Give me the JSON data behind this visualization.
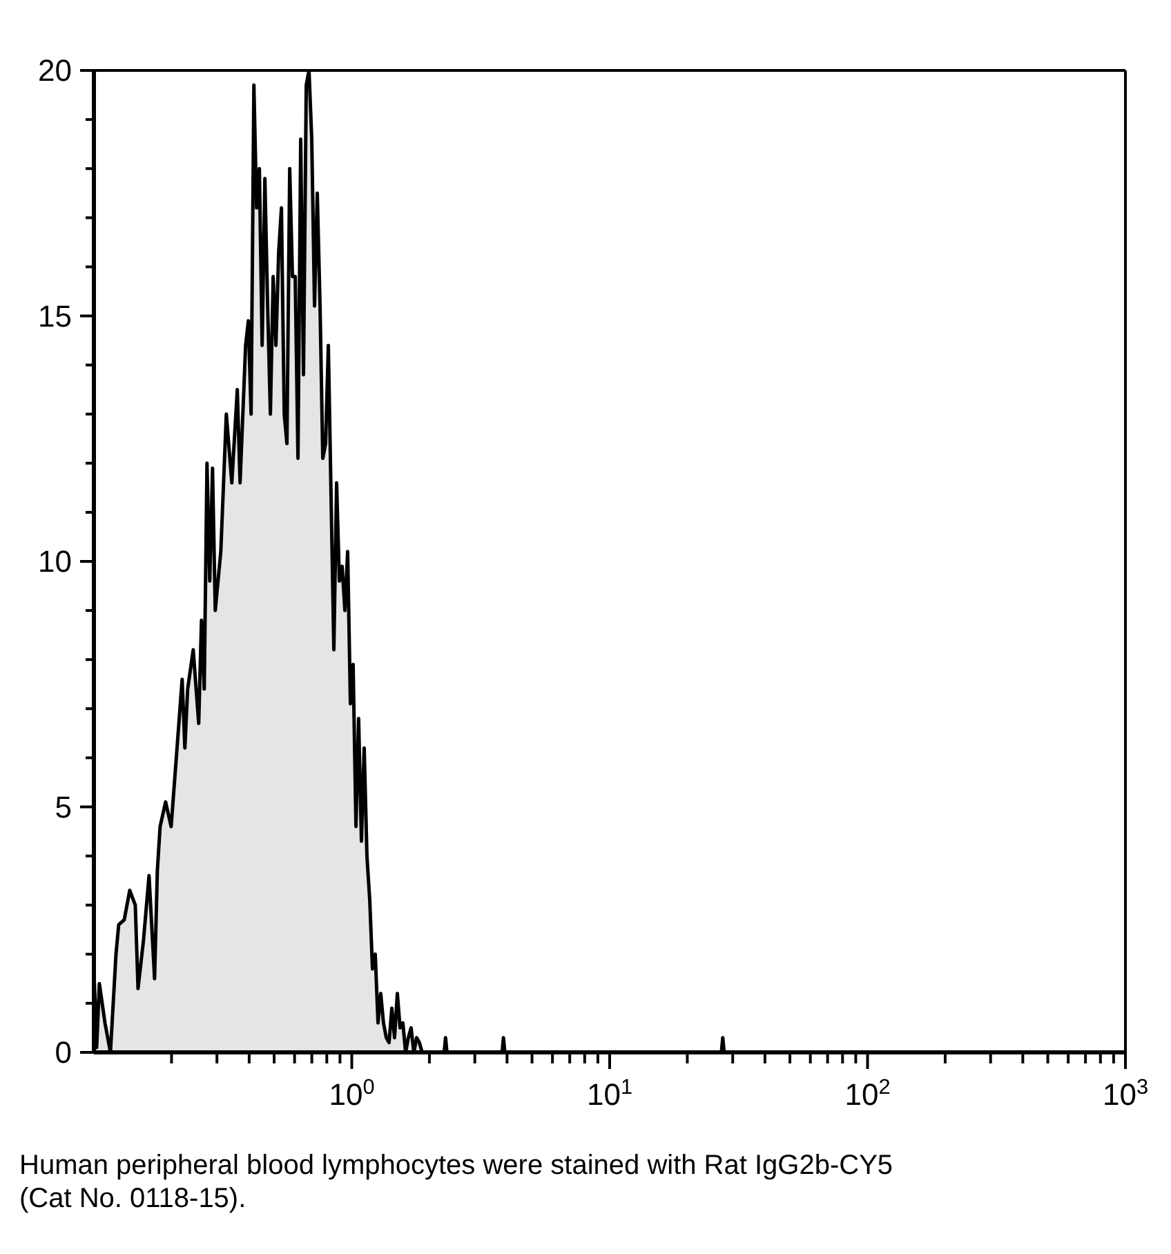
{
  "chart_data": {
    "type": "area",
    "log": "x",
    "annotations": [
      "Human peripheral blood lymphocytes were stained with Rat IgG2b-CY5 (Cat  No. 0118-15)."
    ],
    "xlim": [
      0.1,
      1000
    ],
    "xticks": [
      {
        "value": 0.2,
        "label": null
      },
      {
        "value": 0.3,
        "label": null
      },
      {
        "value": 0.4,
        "label": null
      },
      {
        "value": 0.5,
        "label": null
      },
      {
        "value": 0.6,
        "label": null
      },
      {
        "value": 0.7,
        "label": null
      },
      {
        "value": 0.8,
        "label": null
      },
      {
        "value": 0.9,
        "label": null
      },
      {
        "value": 1,
        "label": "10$^{0}$"
      },
      {
        "value": 2,
        "label": null
      },
      {
        "value": 3,
        "label": null
      },
      {
        "value": 4,
        "label": null
      },
      {
        "value": 5,
        "label": null
      },
      {
        "value": 6,
        "label": null
      },
      {
        "value": 7,
        "label": null
      },
      {
        "value": 8,
        "label": null
      },
      {
        "value": 9,
        "label": null
      },
      {
        "value": 10,
        "label": "10$^{1}$"
      },
      {
        "value": 20,
        "label": null
      },
      {
        "value": 30,
        "label": null
      },
      {
        "value": 40,
        "label": null
      },
      {
        "value": 50,
        "label": null
      },
      {
        "value": 60,
        "label": null
      },
      {
        "value": 70,
        "label": null
      },
      {
        "value": 80,
        "label": null
      },
      {
        "value": 90,
        "label": null
      },
      {
        "value": 100,
        "label": "10$^{2}$"
      },
      {
        "value": 200,
        "label": null
      },
      {
        "value": 300,
        "label": null
      },
      {
        "value": 400,
        "label": null
      },
      {
        "value": 500,
        "label": null
      },
      {
        "value": 600,
        "label": null
      },
      {
        "value": 700,
        "label": null
      },
      {
        "value": 800,
        "label": null
      },
      {
        "value": 900,
        "label": null
      },
      {
        "value": 1000,
        "label": "10$^{3}$"
      }
    ],
    "ylim": [
      0,
      20
    ],
    "yticks": [
      0,
      {
        "value": 1,
        "label": null
      },
      {
        "value": 2,
        "label": null
      },
      {
        "value": 3,
        "label": null
      },
      {
        "value": 4,
        "label": null
      },
      5,
      {
        "value": 6,
        "label": null
      },
      {
        "value": 7,
        "label": null
      },
      {
        "value": 8,
        "label": null
      },
      {
        "value": 9,
        "label": null
      },
      10,
      {
        "value": 11,
        "label": null
      },
      {
        "value": 12,
        "label": null
      },
      {
        "value": 13,
        "label": null
      },
      {
        "value": 14,
        "label": null
      },
      15,
      {
        "value": 16,
        "label": null
      },
      {
        "value": 17,
        "label": null
      },
      {
        "value": 18,
        "label": null
      },
      {
        "value": 19,
        "label": null
      },
      20
    ],
    "series": [
      {
        "color": "#000000",
        "x": [
          0.1,
          0.1025,
          0.105,
          0.1104,
          0.1159,
          0.1218,
          0.1248,
          0.1311,
          0.1377,
          0.1447,
          0.1483,
          0.1558,
          0.1636,
          0.1719,
          0.1762,
          0.1806,
          0.1897,
          0.1993,
          0.2094,
          0.2199,
          0.2253,
          0.231,
          0.2427,
          0.2549,
          0.2613,
          0.2678,
          0.2745,
          0.2813,
          0.2884,
          0.2955,
          0.3105,
          0.3262,
          0.3426,
          0.3598,
          0.3688,
          0.3875,
          0.3971,
          0.407,
          0.4172,
          0.4276,
          0.4382,
          0.4491,
          0.4603,
          0.4718,
          0.4835,
          0.4956,
          0.5079,
          0.5206,
          0.5336,
          0.547,
          0.5604,
          0.5745,
          0.5888,
          0.6035,
          0.6185,
          0.6338,
          0.6497,
          0.6659,
          0.6825,
          0.6995,
          0.717,
          0.7348,
          0.7533,
          0.772,
          0.7914,
          0.8111,
          0.8313,
          0.852,
          0.8733,
          0.8951,
          0.9175,
          0.9403,
          0.9638,
          0.9878,
          1.012,
          1.038,
          1.063,
          1.09,
          1.117,
          1.145,
          1.174,
          1.203,
          1.233,
          1.264,
          1.295,
          1.327,
          1.361,
          1.395,
          1.43,
          1.465,
          1.502,
          1.539,
          1.578,
          1.617,
          1.657,
          1.698,
          1.741,
          1.784,
          1.828,
          1.874,
          2.282,
          2.31,
          2.339,
          3.827,
          3.874,
          3.922,
          27.12,
          27.45,
          27.79,
          1000
        ],
        "values": [
          1.7,
          0.1,
          1.4,
          0.6,
          0,
          2.0,
          2.6,
          2.7,
          3.3,
          3.0,
          1.3,
          2.3,
          3.6,
          1.5,
          3.7,
          4.6,
          5.1,
          4.6,
          6.1,
          7.6,
          6.2,
          7.4,
          8.2,
          6.7,
          8.8,
          7.4,
          12.0,
          9.6,
          11.9,
          9.0,
          10.2,
          13.0,
          11.6,
          13.5,
          11.6,
          14.4,
          14.9,
          13.0,
          19.7,
          17.2,
          18.0,
          14.4,
          17.8,
          15.2,
          13.0,
          15.8,
          14.4,
          16.3,
          17.2,
          13.0,
          12.4,
          18.0,
          15.8,
          15.8,
          12.1,
          18.6,
          13.8,
          19.7,
          20.0,
          18.6,
          15.2,
          17.5,
          15.2,
          12.1,
          12.4,
          14.4,
          11.3,
          8.2,
          11.6,
          9.6,
          9.9,
          9.0,
          10.2,
          7.1,
          7.9,
          4.6,
          6.8,
          4.3,
          6.2,
          4.0,
          3.1,
          1.7,
          2.0,
          0.6,
          1.2,
          0.6,
          0.3,
          0.2,
          0.9,
          0.3,
          1.2,
          0.5,
          0.6,
          0,
          0.3,
          0.5,
          0,
          0.3,
          0.2,
          0,
          0,
          0.3,
          0,
          0,
          0.3,
          0,
          0,
          0.3,
          0,
          0
        ]
      }
    ]
  }
}
